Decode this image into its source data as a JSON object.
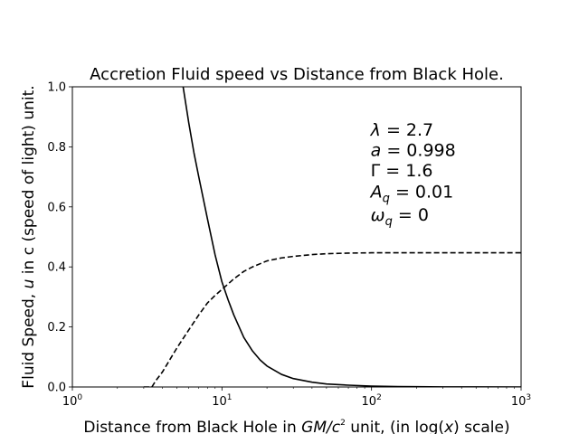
{
  "chart_data": {
    "type": "line",
    "title": "Accretion Fluid speed vs Distance from Black Hole.",
    "xlabel_parts": [
      "Distance from Black Hole in ",
      "GM/c",
      "2",
      " unit, (in log(",
      "x",
      ") scale)"
    ],
    "ylabel_parts": [
      "Fluid Speed, ",
      "u",
      " in c (speed of light) unit."
    ],
    "x_scale": "log",
    "xlim": [
      1,
      1000
    ],
    "ylim": [
      0.0,
      1.0
    ],
    "x_ticks": [
      {
        "value": 1,
        "base": "10",
        "exp": "0"
      },
      {
        "value": 10,
        "base": "10",
        "exp": "1"
      },
      {
        "value": 100,
        "base": "10",
        "exp": "2"
      },
      {
        "value": 1000,
        "base": "10",
        "exp": "3"
      }
    ],
    "y_ticks": [
      "0.0",
      "0.2",
      "0.4",
      "0.6",
      "0.8",
      "1.0"
    ],
    "grid": false,
    "annotations": [
      {
        "sym": "λ",
        "sub": "",
        "text": " = 2.7"
      },
      {
        "sym": "a",
        "sub": "",
        "text": " = 0.998"
      },
      {
        "sym": "Γ",
        "sub": "",
        "text": " = 1.6",
        "upright": true
      },
      {
        "sym": "A",
        "sub": "q",
        "text": " = 0.01"
      },
      {
        "sym": "ω",
        "sub": "q",
        "text": " = 0"
      }
    ],
    "series": [
      {
        "style": "solid",
        "color": "#000000",
        "x": [
          5.5,
          6,
          6.5,
          7,
          8,
          9,
          10,
          11,
          12,
          14,
          16,
          18,
          20,
          25,
          30,
          40,
          50,
          70,
          100,
          150,
          200,
          300,
          500,
          1000
        ],
        "y": [
          1.0,
          0.88,
          0.78,
          0.7,
          0.56,
          0.44,
          0.35,
          0.29,
          0.24,
          0.165,
          0.12,
          0.09,
          0.07,
          0.042,
          0.028,
          0.016,
          0.01,
          0.006,
          0.003,
          0.0015,
          0.0008,
          0.0003,
          0.0001,
          0.0
        ]
      },
      {
        "style": "dashed",
        "color": "#000000",
        "x": [
          3.0,
          3.4,
          3.6,
          4.0,
          5.0,
          6.0,
          7.0,
          8.0,
          9.0,
          10,
          12,
          14,
          16,
          20,
          25,
          30,
          40,
          50,
          70,
          100,
          200,
          500,
          1000
        ],
        "y": [
          0.0,
          0.0,
          0.02,
          0.05,
          0.13,
          0.19,
          0.24,
          0.28,
          0.305,
          0.325,
          0.36,
          0.385,
          0.4,
          0.42,
          0.43,
          0.435,
          0.441,
          0.444,
          0.446,
          0.447,
          0.447,
          0.447,
          0.447
        ]
      }
    ]
  }
}
